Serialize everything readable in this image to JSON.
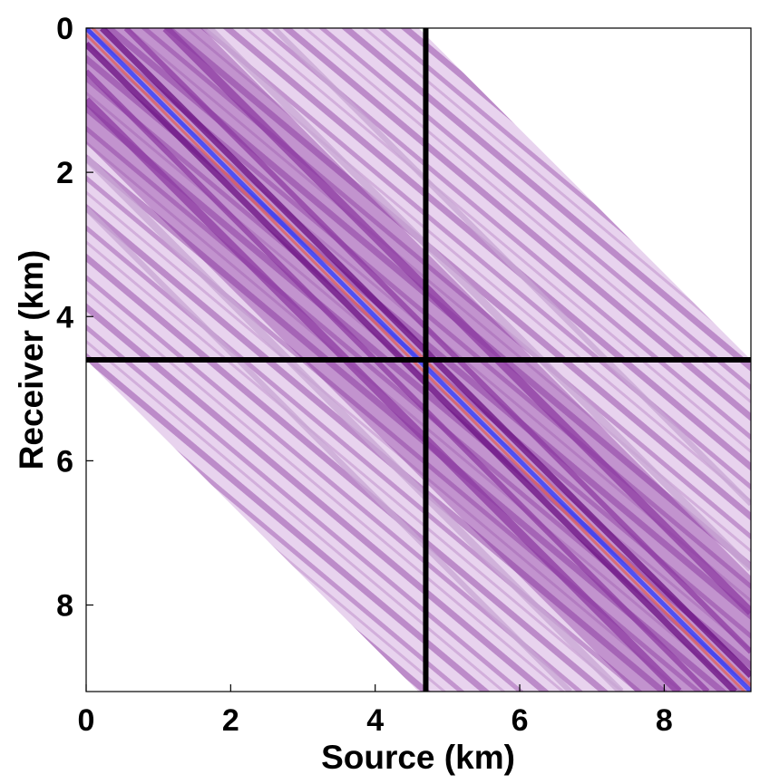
{
  "chart_data": {
    "type": "heatmap",
    "title": "",
    "xlabel": "Source (km)",
    "ylabel": "Receiver (km)",
    "xlim": [
      0,
      9.2
    ],
    "ylim": [
      0,
      9.2
    ],
    "y_inverted": true,
    "x_ticks": [
      0,
      2,
      4,
      6,
      8
    ],
    "x_tick_labels": [
      "0",
      "2",
      "4",
      "6",
      "8"
    ],
    "y_ticks": [
      0,
      2,
      4,
      6,
      8
    ],
    "y_tick_labels": [
      "0",
      "2",
      "4",
      "6",
      "8"
    ],
    "grid": false,
    "colormap": [
      "#ffffff",
      "#c8a6d4",
      "#8e3ba3",
      "#6a0f82",
      "#2a3cff",
      "#e0605a"
    ],
    "data_support": "band |receiver - source| <= 4.6 km (diagonal wedge of nonzero values)",
    "dominant_feature": "strong red/blue diagonal along receiver = source",
    "crosshair": {
      "source_km": 4.7,
      "receiver_km": 4.6,
      "color": "#000000"
    }
  }
}
